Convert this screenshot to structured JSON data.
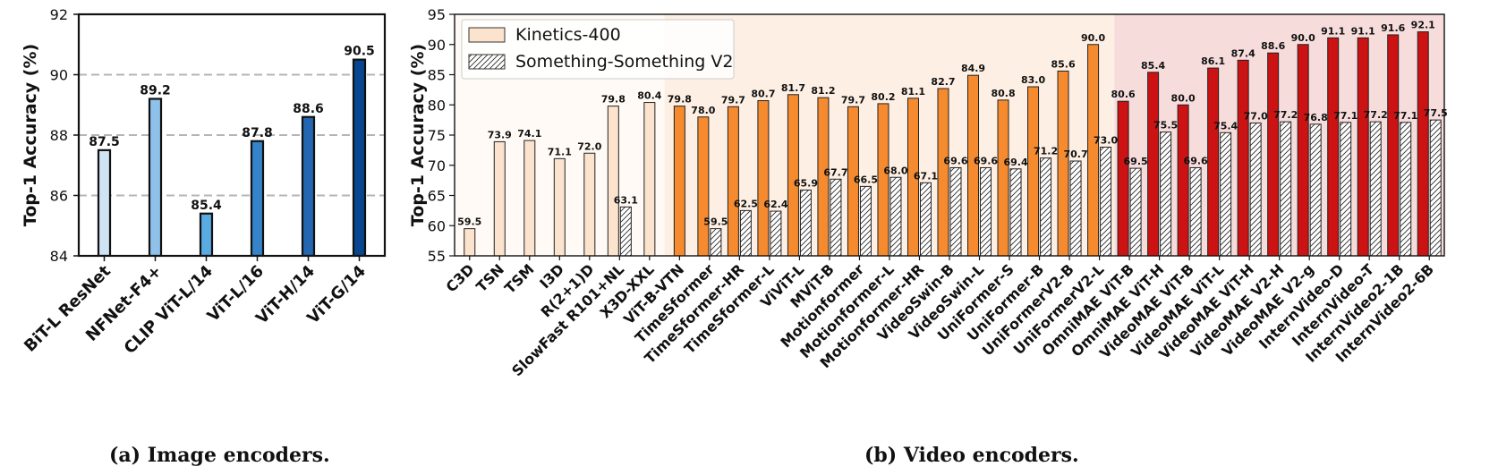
{
  "chart_data": [
    {
      "type": "bar",
      "ylabel": "Top-1 Accuracy (%)",
      "ylim": [
        84,
        92
      ],
      "yticks": [
        84,
        86,
        88,
        90,
        92
      ],
      "grid": "dashed horizontal",
      "categories": [
        "BiT-L ResNet",
        "NFNet-F4+",
        "CLIP ViT-L/14",
        "ViT-L/16",
        "ViT-H/14",
        "ViT-G/14"
      ],
      "values": [
        87.5,
        89.2,
        85.4,
        87.8,
        88.6,
        90.5
      ],
      "colors": [
        "#cfe3f4",
        "#8ec2ea",
        "#5aabe2",
        "#3584c9",
        "#2366b1",
        "#08468f"
      ],
      "labels": [
        "87.5",
        "89.2",
        "85.4",
        "87.8",
        "88.6",
        "90.5"
      ],
      "caption": "(a) Image encoders."
    },
    {
      "type": "bar",
      "ylabel": "Top-1 Accuracy (%)",
      "ylim": [
        55,
        95
      ],
      "yticks": [
        55,
        60,
        65,
        70,
        75,
        80,
        85,
        90,
        95
      ],
      "legend": "top-left",
      "series": [
        {
          "name": "Kinetics-400",
          "style": "solid"
        },
        {
          "name": "Something-Something V2",
          "style": "hatched"
        }
      ],
      "categories": [
        "C3D",
        "TSN",
        "TSM",
        "I3D",
        "R(2+1)D",
        "SlowFast R101+NL",
        "X3D-XXL",
        "ViT-B-VTN",
        "TimeSformer",
        "TimeSformer-HR",
        "TimeSformer-L",
        "ViViT-L",
        "MViT-B",
        "Motionformer",
        "Motionformer-L",
        "Motionformer-HR",
        "VideoSwin-B",
        "VideoSwin-L",
        "UniFormer-S",
        "UniFormer-B",
        "UniFormerV2-B",
        "UniFormerV2-L",
        "OmniMAE ViT-B",
        "OmniMAE ViT-H",
        "VideoMAE ViT-B",
        "VideoMAE ViT-L",
        "VideoMAE ViT-H",
        "VideoMAE V2-H",
        "VideoMAE V2-g",
        "InternVideo-D",
        "InternVideo-T",
        "InternVideo2-1B",
        "InternVideo2-6B"
      ],
      "k400": [
        59.5,
        73.9,
        74.1,
        71.1,
        72.0,
        79.8,
        80.4,
        79.8,
        78.0,
        79.7,
        80.7,
        81.7,
        81.2,
        79.7,
        80.2,
        81.1,
        82.7,
        84.9,
        80.8,
        83.0,
        85.6,
        90.0,
        80.6,
        85.4,
        80.0,
        86.1,
        87.4,
        88.6,
        90.0,
        91.1,
        91.1,
        91.6,
        92.1
      ],
      "k400_labels": [
        "59.5",
        "73.9",
        "74.1",
        "71.1",
        "72.0",
        "79.8",
        "80.4",
        "79.8",
        "78.0",
        "79.7",
        "80.7",
        "81.7",
        "81.2",
        "79.7",
        "80.2",
        "81.1",
        "82.7",
        "84.9",
        "80.8",
        "83.0",
        "85.6",
        "90.0",
        "80.6",
        "85.4",
        "80.0",
        "86.1",
        "87.4",
        "88.6",
        "90.0",
        "91.1",
        "91.1",
        "91.6",
        "92.1"
      ],
      "ssv2": [
        null,
        null,
        null,
        null,
        null,
        63.1,
        null,
        null,
        59.5,
        62.5,
        62.4,
        65.9,
        67.7,
        66.5,
        68.0,
        67.1,
        69.6,
        69.6,
        69.4,
        71.2,
        70.7,
        73.0,
        69.5,
        75.5,
        69.6,
        75.4,
        77.0,
        77.2,
        76.8,
        77.1,
        77.2,
        77.1,
        77.5
      ],
      "ssv2_labels": [
        null,
        null,
        null,
        null,
        null,
        "63.1",
        null,
        null,
        "59.5",
        "62.5",
        "62.4",
        "65.9",
        "67.7",
        "66.5",
        "68.0",
        "67.1",
        "69.6",
        "69.6",
        "69.4",
        "71.2",
        "70.7",
        "73.0",
        "69.5",
        "75.5",
        "69.6",
        "75.4",
        "77.0",
        "77.2",
        "76.8",
        "77.1",
        "77.2",
        "77.1",
        "77.5"
      ],
      "era": [
        "light",
        "light",
        "light",
        "light",
        "light",
        "light",
        "light",
        "mid",
        "mid",
        "mid",
        "mid",
        "mid",
        "mid",
        "mid",
        "mid",
        "mid",
        "mid",
        "mid",
        "mid",
        "mid",
        "mid",
        "mid",
        "dark",
        "dark",
        "dark",
        "dark",
        "dark",
        "dark",
        "dark",
        "dark",
        "dark",
        "dark",
        "dark"
      ],
      "era_colors": {
        "light": "#fbe3cd",
        "mid": "#f58a2e",
        "dark": "#cc1212"
      },
      "era_backgrounds": {
        "light": "#fffaf5",
        "mid": "#fdefe3",
        "dark": "#f7dcdc"
      },
      "caption": "(b) Video encoders."
    }
  ]
}
